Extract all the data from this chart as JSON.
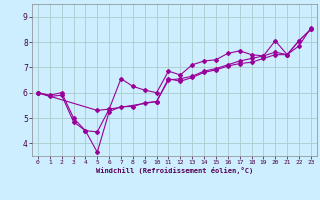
{
  "xlabel": "Windchill (Refroidissement éolien,°C)",
  "background_color": "#cceeff",
  "grid_color": "#aacccc",
  "line_color": "#990099",
  "xlim": [
    -0.5,
    23.5
  ],
  "ylim": [
    3.5,
    9.5
  ],
  "yticks": [
    4,
    5,
    6,
    7,
    8,
    9
  ],
  "xticks": [
    0,
    1,
    2,
    3,
    4,
    5,
    6,
    7,
    8,
    9,
    10,
    11,
    12,
    13,
    14,
    15,
    16,
    17,
    18,
    19,
    20,
    21,
    22,
    23
  ],
  "line1_x": [
    0,
    1,
    2,
    3,
    4,
    5,
    6,
    7,
    8,
    9,
    10,
    11,
    12,
    13,
    14,
    15,
    16,
    17,
    18,
    19,
    20,
    21,
    22,
    23
  ],
  "line1_y": [
    6.0,
    5.85,
    5.9,
    4.85,
    4.5,
    4.45,
    5.35,
    6.55,
    6.25,
    6.1,
    6.0,
    6.85,
    6.7,
    7.1,
    7.25,
    7.3,
    7.55,
    7.65,
    7.5,
    7.45,
    8.05,
    7.5,
    8.05,
    8.5
  ],
  "line2_x": [
    0,
    1,
    2,
    3,
    4,
    5,
    6,
    7,
    8,
    9,
    10,
    11,
    12,
    13,
    14,
    15,
    16,
    17,
    18,
    19,
    20,
    21,
    22,
    23
  ],
  "line2_y": [
    6.0,
    5.9,
    6.0,
    5.0,
    4.5,
    3.65,
    5.25,
    5.45,
    5.45,
    5.6,
    5.65,
    6.55,
    6.45,
    6.6,
    6.8,
    6.9,
    7.05,
    7.15,
    7.2,
    7.35,
    7.5,
    7.5,
    7.85,
    8.55
  ],
  "line3_x": [
    0,
    5,
    6,
    10,
    11,
    12,
    13,
    14,
    15,
    16,
    17,
    18,
    19,
    20,
    21,
    22,
    23
  ],
  "line3_y": [
    6.0,
    5.3,
    5.35,
    5.65,
    6.5,
    6.55,
    6.65,
    6.85,
    6.95,
    7.1,
    7.25,
    7.35,
    7.45,
    7.6,
    7.5,
    8.05,
    8.5
  ]
}
